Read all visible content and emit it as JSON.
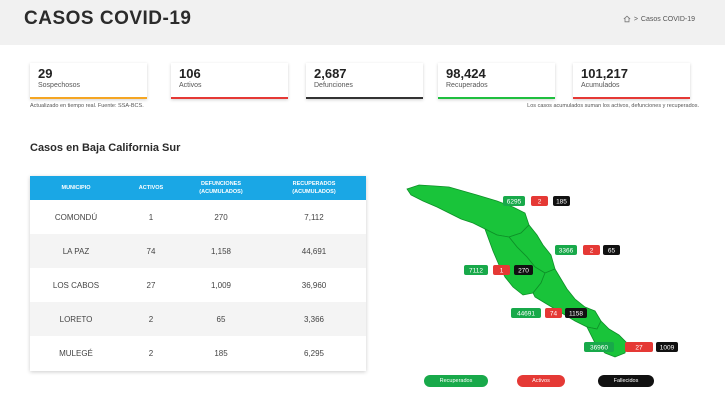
{
  "header": {
    "title": "CASOS COVID-19",
    "breadcrumb_current": "Casos COVID-19"
  },
  "cards": [
    {
      "value": "29",
      "label": "Sospechosos",
      "color": "#f5a623"
    },
    {
      "value": "106",
      "label": "Activos",
      "color": "#e53935"
    },
    {
      "value": "2,687",
      "label": "Defunciones",
      "color": "#333333"
    },
    {
      "value": "98,424",
      "label": "Recuperados",
      "color": "#1fbf3f"
    },
    {
      "value": "101,217",
      "label": "Acumulados",
      "color": "#e53935"
    }
  ],
  "notes": {
    "left": "Actualizado en tiempo real. Fuente: SSA-BCS.",
    "right": "Los casos acumulados suman los activos, defunciones y recuperados."
  },
  "section_title": "Casos en Baja California Sur",
  "table": {
    "headers": {
      "municipio": "MUNICIPIO",
      "activos": "ACTIVOS",
      "defunciones_1": "DEFUNCIONES",
      "defunciones_2": "(ACUMULADOS)",
      "recuperados_1": "RECUPERADOS",
      "recuperados_2": "(ACUMULADOS)"
    },
    "rows": [
      {
        "municipio": "COMONDÚ",
        "activos": "1",
        "defunciones": "270",
        "recuperados": "7,112"
      },
      {
        "municipio": "LA PAZ",
        "activos": "74",
        "defunciones": "1,158",
        "recuperados": "44,691"
      },
      {
        "municipio": "LOS CABOS",
        "activos": "27",
        "defunciones": "1,009",
        "recuperados": "36,960"
      },
      {
        "municipio": "LORETO",
        "activos": "2",
        "defunciones": "65",
        "recuperados": "3,366"
      },
      {
        "municipio": "MULEGÉ",
        "activos": "2",
        "defunciones": "185",
        "recuperados": "6,295"
      }
    ]
  },
  "map": {
    "colors": {
      "land": "#19c43a",
      "border": "#0e8f28",
      "recovered": "#18a94a",
      "active": "#e53935",
      "deaths": "#111111"
    },
    "labels": {
      "mulege": {
        "recovered": "6295",
        "active": "2",
        "deaths": "185"
      },
      "loreto": {
        "recovered": "3366",
        "active": "2",
        "deaths": "65"
      },
      "comondu": {
        "recovered": "7112",
        "active": "1",
        "deaths": "270"
      },
      "lapaz": {
        "recovered": "44691",
        "active": "74",
        "deaths": "1158"
      },
      "loscabos": {
        "recovered": "36960",
        "active": "27",
        "deaths": "1009"
      }
    }
  },
  "legend": {
    "recovered": "Recuperados",
    "active": "Activos",
    "deaths": "Fallecidos"
  }
}
